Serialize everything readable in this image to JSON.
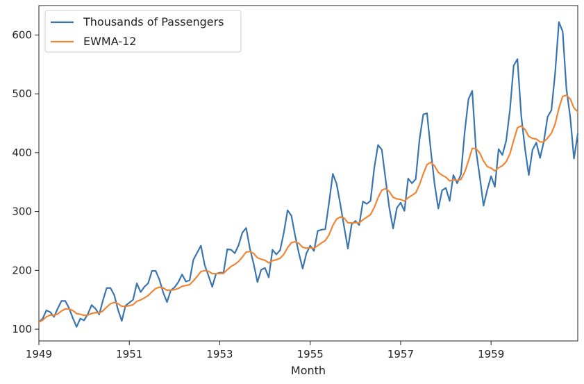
{
  "chart_data": {
    "type": "line",
    "title": "",
    "xlabel": "Month",
    "ylabel": "",
    "xlim": [
      "1949-01",
      "1960-12"
    ],
    "ylim": [
      80,
      650
    ],
    "x_ticks": [
      "1949",
      "1951",
      "1953",
      "1955",
      "1957",
      "1959"
    ],
    "y_ticks": [
      100,
      200,
      300,
      400,
      500,
      600
    ],
    "grid": false,
    "legend": "top-left",
    "x_start": "1949-01",
    "x_frequency": "monthly",
    "series": [
      {
        "name": "Thousands of Passengers",
        "color": "#3a75af",
        "values": [
          112,
          118,
          132,
          129,
          121,
          135,
          148,
          148,
          136,
          119,
          104,
          118,
          115,
          126,
          141,
          135,
          125,
          149,
          170,
          170,
          158,
          133,
          114,
          140,
          145,
          150,
          178,
          163,
          172,
          178,
          199,
          199,
          184,
          162,
          146,
          166,
          171,
          180,
          193,
          181,
          183,
          218,
          230,
          242,
          209,
          191,
          172,
          194,
          196,
          196,
          236,
          235,
          229,
          243,
          264,
          272,
          237,
          211,
          180,
          201,
          204,
          188,
          235,
          227,
          234,
          264,
          302,
          293,
          259,
          229,
          203,
          229,
          242,
          233,
          267,
          269,
          270,
          315,
          364,
          347,
          312,
          274,
          237,
          278,
          284,
          277,
          317,
          313,
          318,
          374,
          413,
          405,
          355,
          306,
          271,
          306,
          315,
          301,
          356,
          348,
          355,
          422,
          465,
          467,
          404,
          347,
          305,
          336,
          340,
          318,
          362,
          348,
          363,
          435,
          491,
          505,
          404,
          359,
          310,
          337,
          360,
          342,
          406,
          396,
          420,
          472,
          548,
          559,
          463,
          407,
          362,
          405,
          417,
          391,
          419,
          461,
          472,
          535,
          622,
          606,
          508,
          461,
          390,
          432
        ]
      },
      {
        "name": "EWMA-12",
        "color": "#ef8636",
        "values": [
          112.0,
          115.25,
          121.25,
          124.0,
          123.3,
          125.9,
          130.9,
          134.4,
          134.5,
          131.6,
          126.6,
          125.3,
          123.5,
          123.9,
          126.7,
          128.1,
          127.6,
          131.0,
          137.6,
          143.2,
          145.5,
          143.4,
          138.9,
          138.9,
          139.9,
          141.6,
          147.4,
          149.7,
          153.2,
          157.1,
          163.6,
          169.1,
          171.4,
          170.0,
          166.3,
          166.3,
          167.1,
          169.1,
          172.8,
          174.2,
          175.6,
          182.2,
          189.6,
          197.9,
          199.6,
          198.4,
          194.5,
          194.4,
          194.6,
          194.8,
          201.1,
          206.6,
          210.1,
          215.2,
          222.6,
          231.0,
          232.0,
          228.7,
          221.3,
          218.9,
          217.1,
          212.7,
          216.3,
          218.0,
          220.5,
          227.1,
          238.6,
          246.8,
          248.7,
          245.8,
          239.2,
          237.7,
          238.3,
          237.4,
          242.1,
          246.5,
          250.6,
          260.4,
          276.3,
          287.1,
          290.9,
          288.9,
          280.9,
          280.6,
          281.1,
          280.5,
          286.0,
          290.3,
          294.7,
          306.9,
          323.4,
          336.2,
          339.0,
          333.8,
          324.1,
          321.5,
          320.5,
          317.6,
          323.5,
          327.4,
          331.7,
          345.6,
          363.9,
          379.8,
          383.6,
          377.5,
          366.4,
          361.7,
          358.3,
          352.1,
          353.6,
          353.0,
          354.5,
          366.9,
          386.0,
          407.3,
          406.8,
          399.4,
          385.6,
          376.3,
          373.8,
          369.0,
          374.4,
          377.9,
          384.4,
          397.9,
          421.0,
          442.3,
          445.5,
          439.6,
          427.6,
          424.2,
          423.1,
          418.2,
          418.3,
          424.9,
          432.9,
          448.6,
          475.4,
          495.6,
          497.5,
          491.5,
          475.9,
          469.4
        ]
      }
    ]
  }
}
